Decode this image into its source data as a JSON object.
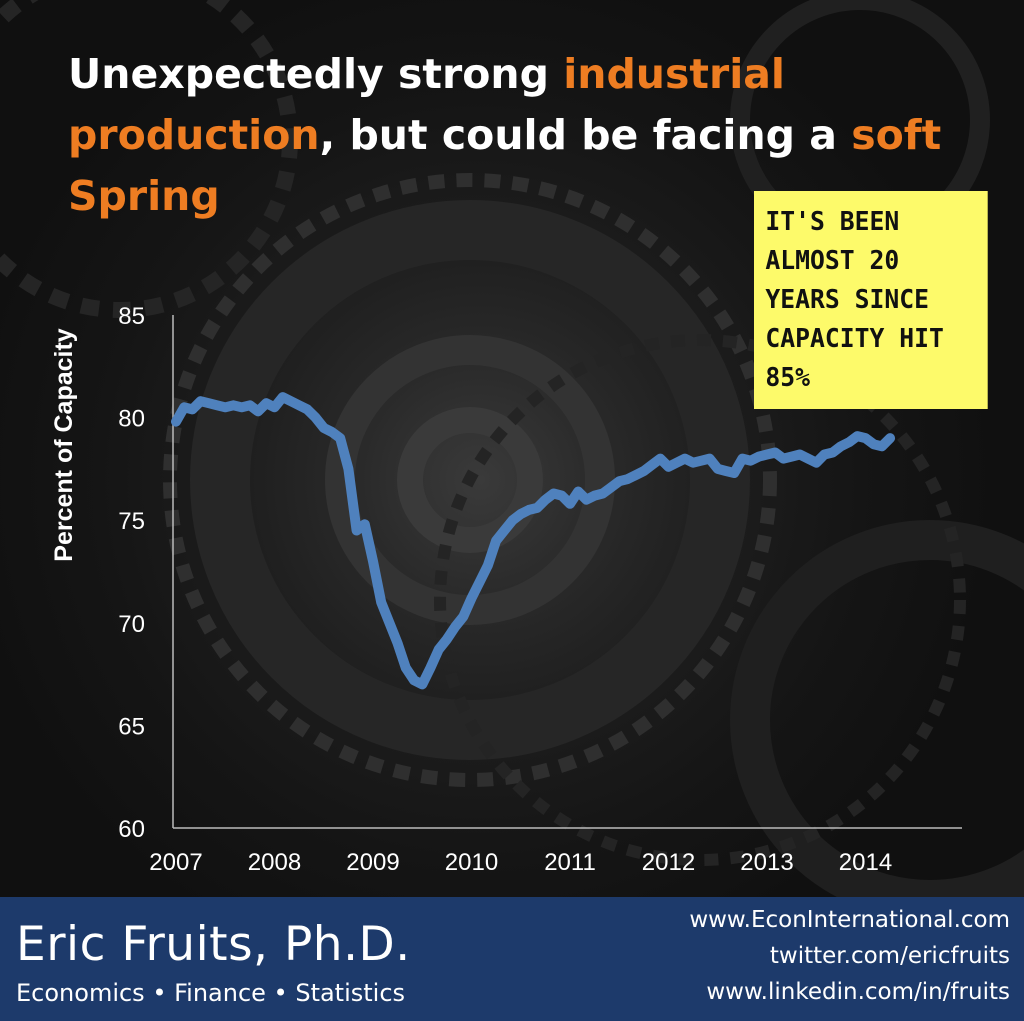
{
  "title": {
    "part1": "Unexpectedly strong ",
    "highlight1": "industrial",
    "part2": " ",
    "highlight2": "production",
    "part3": ", but could be facing a ",
    "highlight3": "soft",
    "part4": " ",
    "highlight4": "Spring"
  },
  "note": {
    "text": "It's been almost 20 years since capacity hit 85%"
  },
  "footer": {
    "name": "Eric Fruits, Ph.D.",
    "tagline": "Economics • Finance • Statistics",
    "website": "www.EconInternational.com",
    "twitter": "twitter.com/ericfruits",
    "linkedin": "www.linkedin.com/in/fruits"
  },
  "colors": {
    "accent": "#ee7d22",
    "line": "#4f81bd",
    "note_bg": "#fdfa6a",
    "footer_bg": "#1d3a6b"
  },
  "chart_data": {
    "type": "line",
    "title": "",
    "xlabel": "",
    "ylabel": "Percent of Capacity",
    "ylim": [
      60,
      85
    ],
    "yticks": [
      60,
      65,
      70,
      75,
      80,
      85
    ],
    "xlim": [
      2007,
      2014.833
    ],
    "xticks": [
      "2007",
      "2008",
      "2009",
      "2010",
      "2011",
      "2012",
      "2013",
      "2014"
    ],
    "grid": false,
    "legend": "none",
    "series": [
      {
        "x": [
          2007.0,
          2007.083,
          2007.167,
          2007.25,
          2007.333,
          2007.417,
          2007.5,
          2007.583,
          2007.667,
          2007.75,
          2007.833,
          2007.917,
          2008.0,
          2008.083,
          2008.167,
          2008.25,
          2008.333,
          2008.417,
          2008.5,
          2008.583,
          2008.667,
          2008.75,
          2008.833,
          2008.917,
          2009.0,
          2009.083,
          2009.167,
          2009.25,
          2009.333,
          2009.417,
          2009.5,
          2009.583,
          2009.667,
          2009.75,
          2009.833,
          2009.917,
          2010.0,
          2010.083,
          2010.167,
          2010.25,
          2010.333,
          2010.417,
          2010.5,
          2010.583,
          2010.667,
          2010.75,
          2010.833,
          2010.917,
          2011.0,
          2011.083,
          2011.167,
          2011.25,
          2011.333,
          2011.417,
          2011.5,
          2011.583,
          2011.667,
          2011.75,
          2011.833,
          2011.917,
          2012.0,
          2012.083,
          2012.167,
          2012.25,
          2012.333,
          2012.417,
          2012.5,
          2012.583,
          2012.667,
          2012.75,
          2012.833,
          2012.917,
          2013.0,
          2013.083,
          2013.167,
          2013.25,
          2013.333,
          2013.417,
          2013.5,
          2013.583,
          2013.667,
          2013.75,
          2013.833,
          2013.917,
          2014.0,
          2014.083,
          2014.167,
          2014.25
        ],
        "values": [
          79.8,
          80.5,
          80.4,
          80.8,
          80.7,
          80.6,
          80.5,
          80.6,
          80.5,
          80.6,
          80.3,
          80.7,
          80.5,
          81.0,
          80.8,
          80.6,
          80.4,
          80.0,
          79.5,
          79.3,
          79.0,
          77.5,
          74.5,
          74.8,
          73.0,
          71.0,
          70.0,
          69.0,
          67.8,
          67.2,
          67.0,
          67.8,
          68.7,
          69.2,
          69.8,
          70.3,
          71.2,
          72.0,
          72.8,
          74.0,
          74.5,
          75.0,
          75.3,
          75.5,
          75.6,
          76.0,
          76.3,
          76.2,
          75.8,
          76.4,
          76.0,
          76.2,
          76.3,
          76.6,
          76.9,
          77.0,
          77.2,
          77.4,
          77.7,
          78.0,
          77.6,
          77.8,
          78.0,
          77.8,
          77.9,
          78.0,
          77.5,
          77.4,
          77.3,
          78.0,
          77.9,
          78.1,
          78.2,
          78.3,
          78.0,
          78.1,
          78.2,
          78.0,
          77.8,
          78.2,
          78.3,
          78.6,
          78.8,
          79.1,
          79.0,
          78.7,
          78.6,
          79.0
        ]
      }
    ]
  }
}
